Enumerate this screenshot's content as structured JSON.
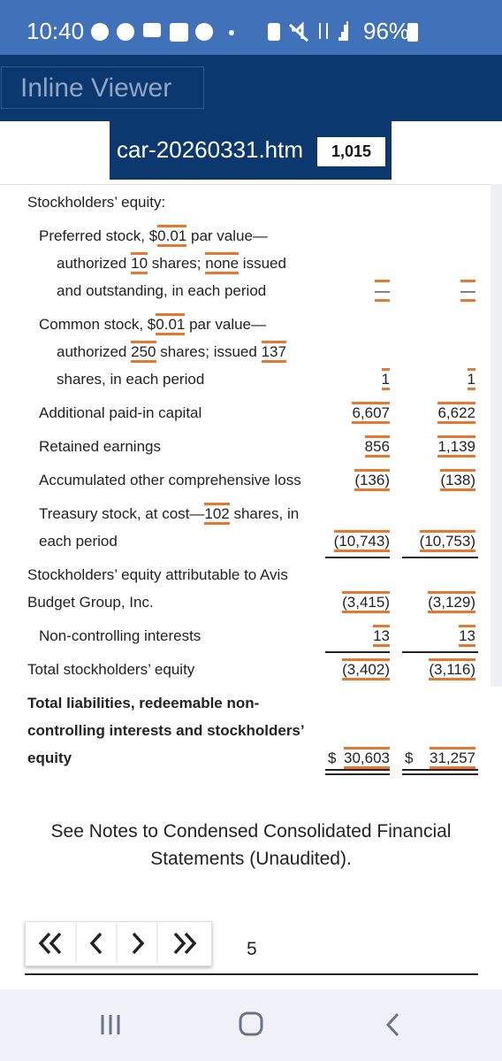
{
  "status_bar": {
    "time": "10:40",
    "battery": "96%"
  },
  "header": {
    "app_title": "Inline Viewer",
    "file_name": "car-20260331.htm",
    "fact_count": "1,015"
  },
  "statement": {
    "rows": [
      {
        "level": 0,
        "lines": [
          [
            "Stockholders’ equity:"
          ]
        ]
      },
      {
        "level": 1,
        "hanging": true,
        "lines": [
          [
            "Preferred stock, $",
            {
              "text": "0.01",
              "tagged": true
            },
            " par value—"
          ],
          [
            "authorized ",
            {
              "text": "10",
              "tagged": true
            },
            " shares; ",
            {
              "text": "none",
              "tagged": true
            },
            " issued"
          ],
          [
            "and outstanding, in each period"
          ]
        ],
        "values": [
          "—",
          "—"
        ]
      },
      {
        "level": 1,
        "hanging": true,
        "lines": [
          [
            "Common stock, $",
            {
              "text": "0.01",
              "tagged": true
            },
            " par value—"
          ],
          [
            "authorized ",
            {
              "text": "250",
              "tagged": true
            },
            " shares; issued ",
            {
              "text": "137",
              "tagged": true
            }
          ],
          [
            "shares, in each period"
          ]
        ],
        "values": [
          "1",
          "1"
        ]
      },
      {
        "level": 1,
        "lines": [
          [
            "Additional paid-in capital"
          ]
        ],
        "values": [
          "6,607",
          "6,622"
        ]
      },
      {
        "level": 1,
        "lines": [
          [
            "Retained earnings"
          ]
        ],
        "values": [
          "856",
          "1,139"
        ]
      },
      {
        "level": 1,
        "lines": [
          [
            "Accumulated other comprehensive loss"
          ]
        ],
        "values": [
          "(136)",
          "(138)"
        ]
      },
      {
        "level": 1,
        "lines": [
          [
            "Treasury stock, at cost—",
            {
              "text": "102",
              "tagged": true
            },
            " shares, in"
          ],
          [
            "each period"
          ]
        ],
        "values": [
          "(10,743)",
          "(10,753)"
        ],
        "underline": "single"
      },
      {
        "level": 0,
        "lines": [
          [
            "Stockholders’ equity attributable to Avis"
          ],
          [
            "Budget Group, Inc."
          ]
        ],
        "values": [
          "(3,415)",
          "(3,129)"
        ]
      },
      {
        "level": 1,
        "lines": [
          [
            "Non-controlling interests"
          ]
        ],
        "values": [
          "13",
          "13"
        ],
        "underline": "single"
      },
      {
        "level": 0,
        "lines": [
          [
            "Total stockholders’ equity"
          ]
        ],
        "values": [
          "(3,402)",
          "(3,116)"
        ]
      },
      {
        "level": 0,
        "bold": true,
        "lines": [
          [
            "Total liabilities, redeemable non-"
          ],
          [
            "controlling interests and stockholders’"
          ],
          [
            "equity"
          ]
        ],
        "currency": "$",
        "values": [
          "30,603",
          "31,257"
        ],
        "underline": "double"
      }
    ]
  },
  "note": "See Notes to Condensed Consolidated Financial Statements (Unaudited).",
  "pagination": {
    "page": "5"
  }
}
